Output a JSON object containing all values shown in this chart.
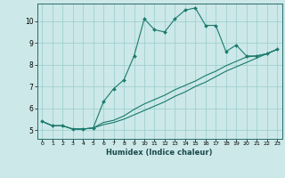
{
  "title": "",
  "xlabel": "Humidex (Indice chaleur)",
  "background_color": "#cce8e8",
  "line_color": "#1a7a6e",
  "grid_color": "#99cccc",
  "xlim": [
    -0.5,
    23.5
  ],
  "ylim": [
    4.6,
    10.8
  ],
  "xticks": [
    0,
    1,
    2,
    3,
    4,
    5,
    6,
    7,
    8,
    9,
    10,
    11,
    12,
    13,
    14,
    15,
    16,
    17,
    18,
    19,
    20,
    21,
    22,
    23
  ],
  "yticks": [
    5,
    6,
    7,
    8,
    9,
    10
  ],
  "line1_x": [
    0,
    1,
    2,
    3,
    4,
    5,
    6,
    7,
    8,
    9,
    10,
    11,
    12,
    13,
    14,
    15,
    16,
    17,
    18,
    19,
    20,
    21,
    22,
    23
  ],
  "line1_y": [
    5.4,
    5.2,
    5.2,
    5.05,
    5.05,
    5.1,
    6.3,
    6.9,
    7.3,
    8.4,
    10.1,
    9.6,
    9.5,
    10.1,
    10.5,
    10.6,
    9.8,
    9.8,
    8.6,
    8.9,
    8.4,
    8.4,
    8.5,
    8.7
  ],
  "line2_x": [
    0,
    1,
    2,
    3,
    4,
    5,
    6,
    7,
    8,
    9,
    10,
    11,
    12,
    13,
    14,
    15,
    16,
    17,
    18,
    19,
    20,
    21,
    22,
    23
  ],
  "line2_y": [
    5.4,
    5.2,
    5.2,
    5.05,
    5.05,
    5.1,
    5.35,
    5.45,
    5.65,
    5.95,
    6.2,
    6.4,
    6.6,
    6.85,
    7.05,
    7.25,
    7.5,
    7.7,
    7.95,
    8.15,
    8.35,
    8.4,
    8.5,
    8.7
  ],
  "line3_x": [
    0,
    1,
    2,
    3,
    4,
    5,
    6,
    7,
    8,
    9,
    10,
    11,
    12,
    13,
    14,
    15,
    16,
    17,
    18,
    19,
    20,
    21,
    22,
    23
  ],
  "line3_y": [
    5.4,
    5.2,
    5.2,
    5.05,
    5.05,
    5.1,
    5.25,
    5.35,
    5.5,
    5.7,
    5.9,
    6.1,
    6.3,
    6.55,
    6.75,
    7.0,
    7.2,
    7.45,
    7.7,
    7.9,
    8.1,
    8.3,
    8.5,
    8.7
  ]
}
